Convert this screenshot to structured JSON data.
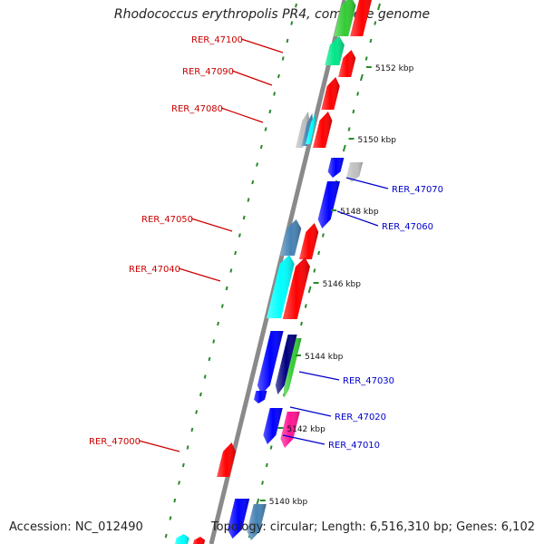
{
  "title": "Rhodococcus erythropolis PR4, complete genome",
  "footer": {
    "accession": "Accession: NC_012490",
    "stats": "Topology: circular; Length: 6,516,310 bp; Genes: 6,102"
  },
  "ticks": [
    "5152 kbp",
    "5150 kbp",
    "5148 kbp",
    "5146 kbp",
    "5144 kbp",
    "5142 kbp",
    "5140 kbp"
  ],
  "gene_labels": [
    {
      "text": "RER_47100",
      "strand": "forward"
    },
    {
      "text": "RER_47090",
      "strand": "forward"
    },
    {
      "text": "RER_47080",
      "strand": "forward"
    },
    {
      "text": "RER_47070",
      "strand": "reverse"
    },
    {
      "text": "RER_47060",
      "strand": "reverse"
    },
    {
      "text": "RER_47050",
      "strand": "forward"
    },
    {
      "text": "RER_47040",
      "strand": "forward"
    },
    {
      "text": "RER_47030",
      "strand": "reverse"
    },
    {
      "text": "RER_47020",
      "strand": "reverse"
    },
    {
      "text": "RER_47010",
      "strand": "reverse"
    },
    {
      "text": "RER_47000",
      "strand": "forward"
    }
  ],
  "colors": {
    "forward_label": "#cc0000",
    "reverse_label": "#0000cc",
    "backbone": "#888888",
    "tick": "#2a8a2a",
    "red": "#ff0000",
    "blue": "#0000ff",
    "cyan": "#00ffff",
    "steel": "#4682b4",
    "green": "#33cc33",
    "spring": "#00e68a",
    "navy": "#000080",
    "magenta": "#ff1493",
    "gray": "#c0c0c0"
  }
}
